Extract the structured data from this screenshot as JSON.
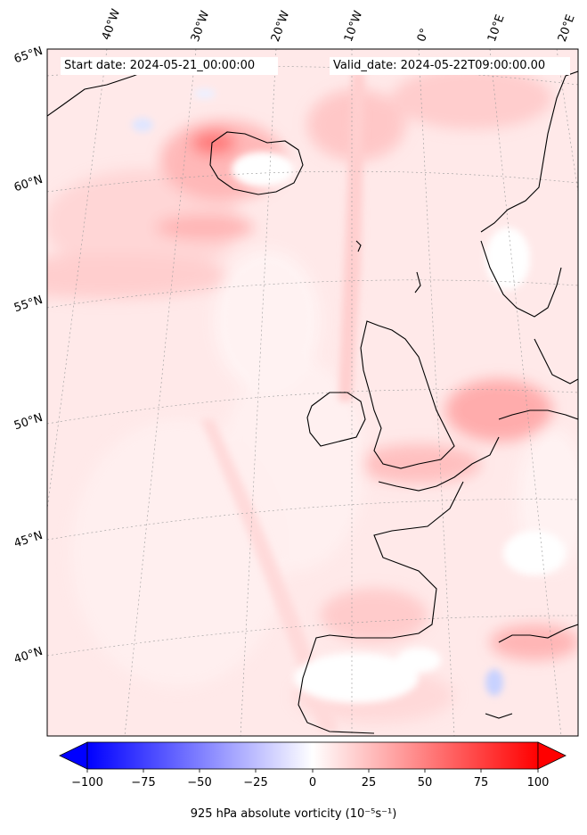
{
  "header": {
    "start_date": "Start date: 2024-05-21_00:00:00",
    "valid_date": "Valid_date: 2024-05-22T09:00:00.00"
  },
  "map": {
    "projection": "lambert-conformal",
    "region": "North Atlantic / Western Europe",
    "field": "absolute vorticity at 925 hPa",
    "lon_labels": [
      "40°W",
      "30°W",
      "20°W",
      "10°W",
      "0°",
      "10°E",
      "20°E"
    ],
    "lat_labels": [
      "65°N",
      "60°N",
      "55°N",
      "50°N",
      "45°N",
      "40°N"
    ],
    "gridlines": true,
    "coastlines": true
  },
  "colorbar": {
    "colormap": "bwr",
    "min": -100,
    "max": 100,
    "extend": "both",
    "ticks": [
      "−100",
      "−75",
      "−50",
      "−25",
      "0",
      "25",
      "50",
      "75",
      "100"
    ],
    "label": "925 hPa absolute vorticity (10⁻⁵s⁻¹)",
    "colors": {
      "low": "#0000ff",
      "mid": "#ffffff",
      "high": "#ff0000"
    }
  }
}
